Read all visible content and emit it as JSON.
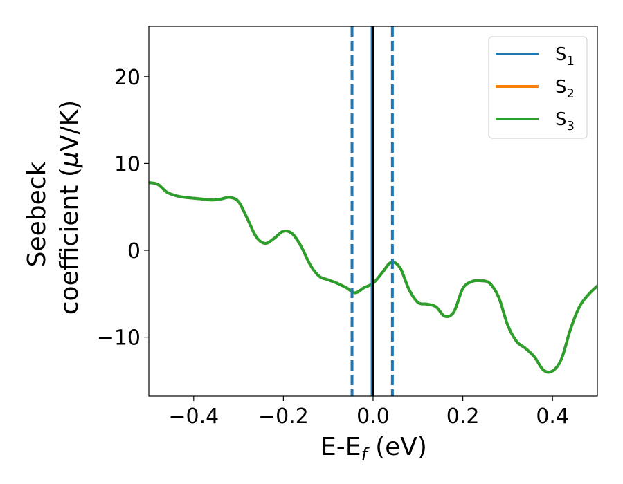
{
  "chart_data": {
    "type": "line",
    "xlabel": {
      "main": "E-E",
      "sub": "f",
      "suffix": " (eV)"
    },
    "ylabel": {
      "line1": "Seebeck",
      "line2_prefix": "coefficient  (",
      "line2_mu": "μ",
      "line2_suffix": "V/K)"
    },
    "xlim": [
      -0.5,
      0.5
    ],
    "ylim": [
      -16.8,
      25.8
    ],
    "xticks": [
      -0.4,
      -0.2,
      0.0,
      0.2,
      0.4
    ],
    "xtick_labels": [
      "−0.4",
      "−0.2",
      "0.0",
      "0.2",
      "0.4"
    ],
    "yticks": [
      -10,
      0,
      10,
      20
    ],
    "ytick_labels": [
      "−10",
      "0",
      "10",
      "20"
    ],
    "grid": false,
    "legend_placement": "top-right",
    "legend": [
      {
        "base": "S",
        "sub": "1",
        "color": "#1f77b4"
      },
      {
        "base": "S",
        "sub": "2",
        "color": "#ff7f0e"
      },
      {
        "base": "S",
        "sub": "3",
        "color": "#2ca02c"
      }
    ],
    "series": [
      {
        "color": "#1f77b4",
        "x": [
          -0.5,
          -0.48,
          -0.46,
          -0.44,
          -0.42,
          -0.4,
          -0.38,
          -0.36,
          -0.34,
          -0.32,
          -0.3,
          -0.28,
          -0.26,
          -0.24,
          -0.22,
          -0.2,
          -0.18,
          -0.16,
          -0.14,
          -0.12,
          -0.1,
          -0.08,
          -0.06,
          -0.04,
          -0.02,
          0.0,
          0.02,
          0.04,
          0.06,
          0.08,
          0.1,
          0.12,
          0.14,
          0.16,
          0.18,
          0.2,
          0.22,
          0.24,
          0.26,
          0.28,
          0.3,
          0.32,
          0.34,
          0.36,
          0.38,
          0.4,
          0.42,
          0.44,
          0.46,
          0.48,
          0.5
        ],
        "y": [
          7.8,
          7.6,
          6.7,
          6.3,
          6.1,
          6.0,
          5.9,
          5.8,
          5.9,
          6.1,
          5.6,
          3.6,
          1.5,
          0.8,
          1.4,
          2.2,
          1.9,
          0.4,
          -1.7,
          -3.0,
          -3.4,
          -3.8,
          -4.3,
          -4.9,
          -4.3,
          -3.8,
          -2.6,
          -1.4,
          -2.0,
          -4.5,
          -6.0,
          -6.2,
          -6.5,
          -7.6,
          -7.1,
          -4.4,
          -3.6,
          -3.5,
          -3.8,
          -5.4,
          -8.6,
          -10.5,
          -11.3,
          -12.3,
          -13.8,
          -13.9,
          -12.5,
          -9.1,
          -6.5,
          -5.1,
          -4.1
        ]
      },
      {
        "color": "#ff7f0e",
        "x": [
          -0.5,
          -0.48,
          -0.46,
          -0.44,
          -0.42,
          -0.4,
          -0.38,
          -0.36,
          -0.34,
          -0.32,
          -0.3,
          -0.28,
          -0.26,
          -0.24,
          -0.22,
          -0.2,
          -0.18,
          -0.16,
          -0.14,
          -0.12,
          -0.1,
          -0.08,
          -0.06,
          -0.04,
          -0.02,
          0.0,
          0.02,
          0.04,
          0.06,
          0.08,
          0.1,
          0.12,
          0.14,
          0.16,
          0.18,
          0.2,
          0.22,
          0.24,
          0.26,
          0.28,
          0.3,
          0.32,
          0.34,
          0.36,
          0.38,
          0.4,
          0.42,
          0.44,
          0.46,
          0.48,
          0.5
        ],
        "y": [
          7.8,
          7.6,
          6.7,
          6.3,
          6.1,
          6.0,
          5.9,
          5.8,
          5.9,
          6.1,
          5.6,
          3.6,
          1.5,
          0.8,
          1.4,
          2.2,
          1.9,
          0.4,
          -1.7,
          -3.0,
          -3.4,
          -3.8,
          -4.3,
          -4.9,
          -4.3,
          -3.8,
          -2.6,
          -1.4,
          -2.0,
          -4.5,
          -6.0,
          -6.2,
          -6.5,
          -7.6,
          -7.1,
          -4.4,
          -3.6,
          -3.5,
          -3.8,
          -5.4,
          -8.6,
          -10.5,
          -11.3,
          -12.3,
          -13.8,
          -13.9,
          -12.5,
          -9.1,
          -6.5,
          -5.1,
          -4.1
        ]
      },
      {
        "color": "#2ca02c",
        "x": [
          -0.5,
          -0.48,
          -0.46,
          -0.44,
          -0.42,
          -0.4,
          -0.38,
          -0.36,
          -0.34,
          -0.32,
          -0.3,
          -0.28,
          -0.26,
          -0.24,
          -0.22,
          -0.2,
          -0.18,
          -0.16,
          -0.14,
          -0.12,
          -0.1,
          -0.08,
          -0.06,
          -0.04,
          -0.02,
          0.0,
          0.02,
          0.04,
          0.06,
          0.08,
          0.1,
          0.12,
          0.14,
          0.16,
          0.18,
          0.2,
          0.22,
          0.24,
          0.26,
          0.28,
          0.3,
          0.32,
          0.34,
          0.36,
          0.38,
          0.4,
          0.42,
          0.44,
          0.46,
          0.48,
          0.5
        ],
        "y": [
          7.8,
          7.6,
          6.7,
          6.3,
          6.1,
          6.0,
          5.9,
          5.8,
          5.9,
          6.1,
          5.6,
          3.6,
          1.5,
          0.8,
          1.4,
          2.2,
          1.9,
          0.4,
          -1.7,
          -3.0,
          -3.4,
          -3.8,
          -4.3,
          -4.9,
          -4.3,
          -3.8,
          -2.6,
          -1.4,
          -2.0,
          -4.5,
          -6.0,
          -6.2,
          -6.5,
          -7.6,
          -7.1,
          -4.4,
          -3.6,
          -3.5,
          -3.8,
          -5.4,
          -8.6,
          -10.5,
          -11.3,
          -12.3,
          -13.8,
          -13.9,
          -12.5,
          -9.1,
          -6.5,
          -5.1,
          -4.1
        ]
      }
    ],
    "vlines": [
      {
        "x": -0.047,
        "style": "dashed",
        "color": "#1f77b4"
      },
      {
        "x": -0.003,
        "style": "solid",
        "color": "#1f77b4"
      },
      {
        "x": 0.0,
        "style": "solid",
        "color": "#000000"
      },
      {
        "x": 0.043,
        "style": "dashed",
        "color": "#1f77b4"
      }
    ]
  }
}
